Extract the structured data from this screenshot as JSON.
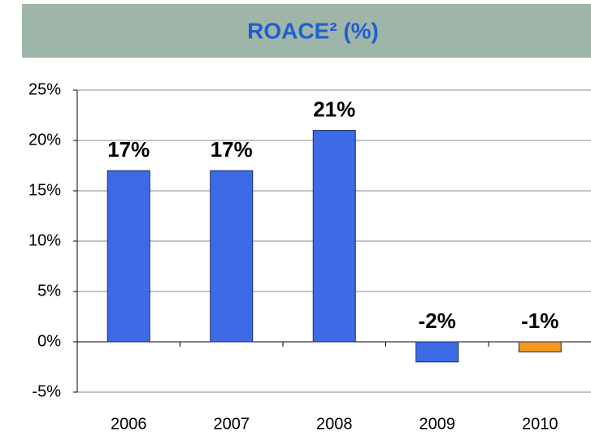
{
  "chart_data": {
    "type": "bar",
    "title": "ROACE² (%)",
    "categories": [
      "2006",
      "2007",
      "2008",
      "2009",
      "2010"
    ],
    "values": [
      17,
      17,
      21,
      -2,
      -1
    ],
    "value_labels": [
      "17%",
      "17%",
      "21%",
      "-2%",
      "-1%"
    ],
    "colors": [
      "#3d6be6",
      "#3d6be6",
      "#3d6be6",
      "#3d6be6",
      "#f39a1e"
    ],
    "ylim": [
      -5,
      25
    ],
    "yticks": [
      {
        "value": -5,
        "label": "-5%"
      },
      {
        "value": 0,
        "label": "0%"
      },
      {
        "value": 5,
        "label": "5%"
      },
      {
        "value": 10,
        "label": "10%"
      },
      {
        "value": 15,
        "label": "15%"
      },
      {
        "value": 20,
        "label": "20%"
      },
      {
        "value": 25,
        "label": "25%"
      }
    ],
    "grid": true
  }
}
